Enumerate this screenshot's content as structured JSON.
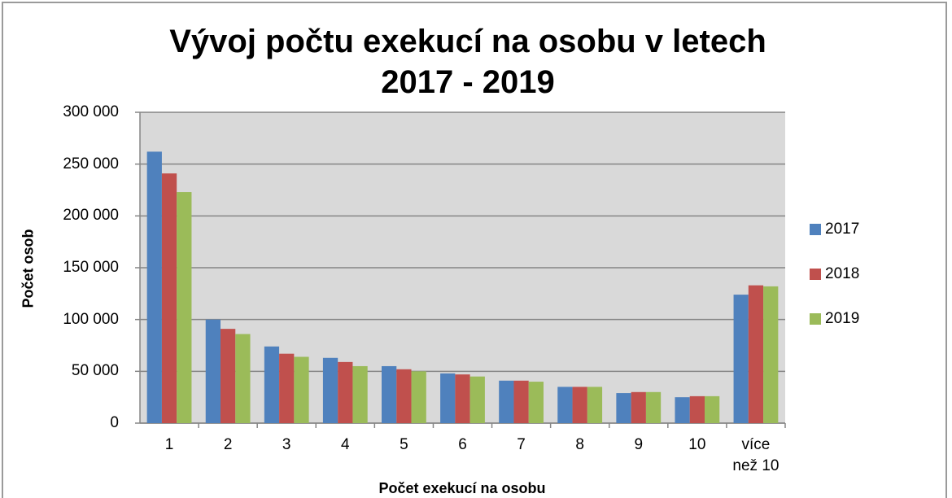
{
  "chart_data": {
    "type": "bar",
    "title": "Vývoj počtu exekucí na osobu v letech 2017 - 2019",
    "x_label": "Počet exekucí na osobu",
    "y_label": "Počet osob",
    "categories": [
      "1",
      "2",
      "3",
      "4",
      "5",
      "6",
      "7",
      "8",
      "9",
      "10",
      "více než 10"
    ],
    "series": [
      {
        "name": "2017",
        "color": "#4f81bd",
        "values": [
          262000,
          100000,
          74000,
          63000,
          55000,
          48000,
          41000,
          35000,
          29000,
          25000,
          124000
        ]
      },
      {
        "name": "2018",
        "color": "#c0504d",
        "values": [
          241000,
          91000,
          67000,
          59000,
          52000,
          47000,
          41000,
          35000,
          30000,
          26000,
          133000
        ]
      },
      {
        "name": "2019",
        "color": "#9bbb59",
        "values": [
          223000,
          86000,
          64000,
          55000,
          50000,
          45000,
          40000,
          35000,
          30000,
          26000,
          132000
        ]
      }
    ],
    "ylim": [
      0,
      300000
    ],
    "yticks": [
      0,
      {
        "value": 50000,
        "label": "50 000"
      },
      {
        "value": 100000,
        "label": "100 000"
      },
      {
        "value": 150000,
        "label": "150 000"
      },
      {
        "value": 200000,
        "label": "200 000"
      },
      {
        "value": 250000,
        "label": "250 000"
      },
      {
        "value": 300000,
        "label": "300 000"
      }
    ],
    "grid": true,
    "legend": "right"
  }
}
